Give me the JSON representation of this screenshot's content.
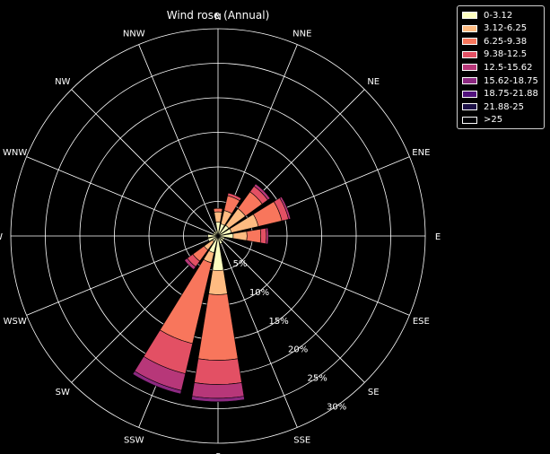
{
  "chart_data": {
    "type": "wind-rose",
    "title": "Wind rose (Annual)",
    "directions": [
      "N",
      "NNE",
      "NE",
      "ENE",
      "E",
      "ESE",
      "SE",
      "SSE",
      "S",
      "SSW",
      "SW",
      "WSW",
      "W",
      "WNW",
      "NW",
      "NNW"
    ],
    "radial_ticks": [
      "5%",
      "10%",
      "15%",
      "20%",
      "25%",
      "30%"
    ],
    "radial_tick_values": [
      5,
      10,
      15,
      20,
      25,
      30
    ],
    "r_max": 30,
    "legend_location": "outside upper right",
    "series": [
      {
        "name": "0-3.12",
        "color": "#fcfdbf",
        "values": [
          2.0,
          1.8,
          1.9,
          2.0,
          2.2,
          1.0,
          1.0,
          1.2,
          5.0,
          2.5,
          1.0,
          1.5,
          1.5,
          0.8,
          0.8,
          0.8
        ]
      },
      {
        "name": "3.12-6.25",
        "color": "#febb81",
        "values": [
          1.5,
          2.0,
          3.0,
          4.0,
          2.0,
          0,
          0,
          0,
          3.5,
          1.5,
          1.5,
          0,
          0,
          0,
          0,
          0
        ]
      },
      {
        "name": "6.25-9.38",
        "color": "#f8765c",
        "values": [
          0.5,
          2.2,
          3.0,
          3.5,
          2.0,
          0,
          0,
          0,
          9.5,
          12.0,
          2.0,
          0,
          0,
          0,
          0,
          0
        ]
      },
      {
        "name": "9.38-12.5",
        "color": "#e35064",
        "values": [
          0,
          0.4,
          1.0,
          1.0,
          0.8,
          0,
          0,
          0,
          3.5,
          4.5,
          1.0,
          0,
          0,
          0,
          0,
          0
        ]
      },
      {
        "name": "12.5-15.62",
        "color": "#b73779",
        "values": [
          0,
          0,
          0.4,
          0.3,
          0.3,
          0,
          0,
          0,
          2.0,
          2.5,
          0.5,
          0,
          0,
          0,
          0,
          0
        ]
      },
      {
        "name": "15.62-18.75",
        "color": "#8c2981",
        "values": [
          0,
          0,
          0,
          0,
          0,
          0,
          0,
          0,
          0.5,
          0.5,
          0,
          0,
          0,
          0,
          0,
          0
        ]
      },
      {
        "name": "18.75-21.88",
        "color": "#51127c",
        "values": [
          0,
          0,
          0,
          0,
          0,
          0,
          0,
          0,
          0,
          0,
          0,
          0,
          0,
          0,
          0,
          0
        ]
      },
      {
        "name": "21.88-25",
        "color": "#1d1147",
        "values": [
          0,
          0,
          0,
          0,
          0,
          0,
          0,
          0,
          0,
          0,
          0,
          0,
          0,
          0,
          0,
          0
        ]
      },
      {
        "name": ">25",
        "color": "#000004",
        "values": [
          0,
          0,
          0,
          0,
          0,
          0,
          0,
          0,
          0,
          0,
          0,
          0,
          0,
          0,
          0,
          0
        ]
      }
    ]
  }
}
